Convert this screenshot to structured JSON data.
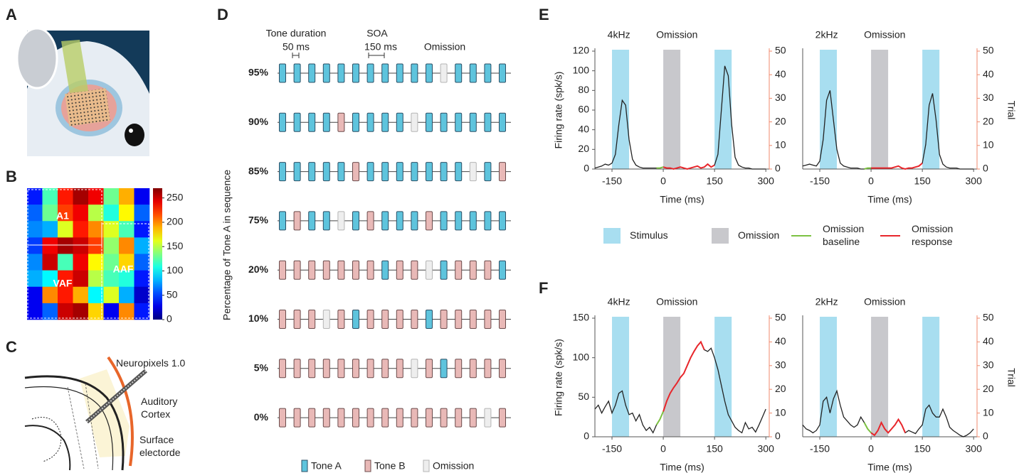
{
  "panel_labels": [
    "A",
    "B",
    "C",
    "D",
    "E",
    "F"
  ],
  "anatomy_labels": [
    [
      "Neuropixels 1.0"
    ],
    [
      "Auditory",
      "Cortex"
    ],
    [
      "Surface",
      "electorde"
    ]
  ],
  "sequence_diagram": {
    "y_label": "Percentage of  Tone A in sequence",
    "tone_duration_label": "Tone duration",
    "tone_duration_value": "50 ms",
    "soa_label": "SOA",
    "soa_value": "150 ms",
    "omission_label": "Omission",
    "legend": [
      {
        "name": "Tone A",
        "color": "#5ec4dd",
        "stroke": "#2b4f66"
      },
      {
        "name": "Tone B",
        "color": "#e9b9b7",
        "stroke": "#6b4b4b"
      },
      {
        "name": "Omission",
        "color": "#eeeeee",
        "stroke": "#b5b5b5"
      }
    ],
    "rows": [
      {
        "label": "95%",
        "sequence": [
          "Tone A",
          "Tone A",
          "Tone A",
          "Tone A",
          "Tone A",
          "Tone A",
          "Tone A",
          "Tone A",
          "Tone A",
          "Tone A",
          "Tone A",
          "Omission",
          "Tone A",
          "Tone A",
          "Tone A",
          "Tone A"
        ]
      },
      {
        "label": "90%",
        "sequence": [
          "Tone A",
          "Tone A",
          "Tone A",
          "Tone A",
          "Tone B",
          "Tone A",
          "Tone A",
          "Tone A",
          "Tone A",
          "Omission",
          "Tone A",
          "Tone A",
          "Tone A",
          "Tone A",
          "Tone A",
          "Tone A"
        ]
      },
      {
        "label": "85%",
        "sequence": [
          "Tone A",
          "Tone A",
          "Tone A",
          "Tone A",
          "Tone A",
          "Tone B",
          "Tone A",
          "Tone A",
          "Tone A",
          "Tone A",
          "Tone A",
          "Tone A",
          "Tone A",
          "Omission",
          "Tone A",
          "Tone B"
        ]
      },
      {
        "label": "75%",
        "sequence": [
          "Tone A",
          "Tone B",
          "Tone A",
          "Tone A",
          "Omission",
          "Tone A",
          "Tone B",
          "Tone A",
          "Tone A",
          "Tone A",
          "Tone B",
          "Tone A",
          "Tone A",
          "Tone A",
          "Tone A",
          "Tone A"
        ]
      },
      {
        "label": "20%",
        "sequence": [
          "Tone B",
          "Tone B",
          "Tone B",
          "Tone B",
          "Tone B",
          "Tone B",
          "Tone B",
          "Tone A",
          "Tone B",
          "Tone B",
          "Omission",
          "Tone A",
          "Tone B",
          "Tone B",
          "Tone B",
          "Tone A"
        ]
      },
      {
        "label": "10%",
        "sequence": [
          "Tone B",
          "Tone B",
          "Tone B",
          "Omission",
          "Tone B",
          "Tone A",
          "Tone B",
          "Tone B",
          "Tone B",
          "Tone B",
          "Tone A",
          "Tone B",
          "Tone B",
          "Tone B",
          "Tone B",
          "Tone B"
        ]
      },
      {
        "label": "5%",
        "sequence": [
          "Tone B",
          "Tone B",
          "Tone B",
          "Tone B",
          "Tone B",
          "Tone B",
          "Tone B",
          "Tone B",
          "Tone B",
          "Omission",
          "Tone B",
          "Tone A",
          "Tone B",
          "Tone B",
          "Tone B",
          "Tone B"
        ]
      },
      {
        "label": "0%",
        "sequence": [
          "Tone B",
          "Tone B",
          "Tone B",
          "Tone B",
          "Tone B",
          "Tone B",
          "Tone B",
          "Tone B",
          "Tone B",
          "Tone B",
          "Tone B",
          "Tone B",
          "Tone B",
          "Tone B",
          "Omission",
          "Tone B"
        ]
      }
    ]
  },
  "legend_ef": [
    {
      "label": [
        "Stimulus"
      ],
      "color": "#a8def0",
      "kind": "box"
    },
    {
      "label": [
        "Omission"
      ],
      "color": "#c8c8cc",
      "kind": "box"
    },
    {
      "label": [
        "Omission",
        "baseline"
      ],
      "color": "#7cc142",
      "kind": "line"
    },
    {
      "label": [
        "Omission",
        "response"
      ],
      "color": "#e8262b",
      "kind": "line"
    }
  ],
  "chart_data": [
    {
      "type": "heatmap",
      "colormap": "jet",
      "zlim": [
        0,
        270
      ],
      "zticks": [
        0,
        50,
        100,
        150,
        200,
        250
      ],
      "region_labels": [
        "A1",
        "VAF",
        "AAF"
      ],
      "z": [
        [
          40,
          120,
          230,
          260,
          240,
          130,
          190,
          30
        ],
        [
          60,
          130,
          220,
          240,
          150,
          110,
          170,
          60
        ],
        [
          70,
          80,
          160,
          230,
          200,
          160,
          120,
          40
        ],
        [
          50,
          240,
          260,
          250,
          220,
          140,
          200,
          80
        ],
        [
          70,
          250,
          120,
          240,
          170,
          130,
          180,
          60
        ],
        [
          80,
          100,
          230,
          250,
          150,
          120,
          110,
          40
        ],
        [
          30,
          200,
          230,
          190,
          100,
          160,
          80,
          20
        ],
        [
          30,
          60,
          250,
          260,
          180,
          30,
          200,
          40
        ]
      ]
    },
    {
      "type": "line",
      "annotations": [
        "4kHz",
        "Omission"
      ],
      "xlabel": "Time (ms)",
      "ylabel": "Firing rate (spk/s)",
      "xlim": [
        -200,
        310
      ],
      "xticks": [
        -150,
        0,
        150,
        300
      ],
      "ylim": [
        0,
        120
      ],
      "yticks": [
        0,
        20,
        40,
        60,
        80,
        100,
        120
      ],
      "y2lim": [
        0,
        50
      ],
      "y2ticks": [
        0,
        10,
        20,
        30,
        40,
        50
      ],
      "bands": [
        {
          "color": "#a8def0",
          "xrange": [
            -150,
            -100
          ]
        },
        {
          "color": "#c8c8cc",
          "xrange": [
            0,
            50
          ]
        },
        {
          "color": "#a8def0",
          "xrange": [
            150,
            200
          ]
        }
      ],
      "highlights": [
        {
          "color": "#7cc142",
          "xrange": [
            -20,
            0
          ]
        },
        {
          "color": "#e8262b",
          "xrange": [
            0,
            150
          ]
        }
      ],
      "x": [
        -200,
        -190,
        -180,
        -170,
        -160,
        -150,
        -140,
        -130,
        -120,
        -110,
        -100,
        -90,
        -80,
        -70,
        -60,
        -50,
        -40,
        -30,
        -20,
        -10,
        0,
        10,
        20,
        30,
        40,
        50,
        60,
        70,
        80,
        90,
        100,
        110,
        120,
        130,
        140,
        150,
        160,
        170,
        180,
        190,
        200,
        210,
        220,
        230,
        240,
        250,
        260,
        270,
        280,
        290,
        300
      ],
      "series": [
        {
          "color": "#222222",
          "values": [
            1,
            2,
            3,
            5,
            4,
            6,
            15,
            45,
            70,
            65,
            30,
            10,
            4,
            2,
            1,
            1,
            1,
            1,
            1,
            1,
            2,
            1,
            1,
            0,
            1,
            2,
            1,
            0,
            1,
            2,
            3,
            1,
            2,
            5,
            2,
            4,
            15,
            60,
            105,
            95,
            45,
            12,
            4,
            2,
            1,
            1,
            0,
            0,
            0,
            0,
            0
          ]
        }
      ]
    },
    {
      "type": "line",
      "annotations": [
        "2kHz",
        "Omission"
      ],
      "xlabel": "Time (ms)",
      "y2label": "Trial",
      "xlim": [
        -200,
        310
      ],
      "xticks": [
        -150,
        0,
        150,
        300
      ],
      "ylim": [
        0,
        120
      ],
      "y2lim": [
        0,
        50
      ],
      "y2ticks": [
        0,
        10,
        20,
        30,
        40,
        50
      ],
      "bands": [
        {
          "color": "#a8def0",
          "xrange": [
            -150,
            -100
          ]
        },
        {
          "color": "#c8c8cc",
          "xrange": [
            0,
            50
          ]
        },
        {
          "color": "#a8def0",
          "xrange": [
            150,
            200
          ]
        }
      ],
      "highlights": [
        {
          "color": "#7cc142",
          "xrange": [
            -20,
            0
          ]
        },
        {
          "color": "#e8262b",
          "xrange": [
            0,
            150
          ]
        }
      ],
      "x": [
        -200,
        -190,
        -180,
        -170,
        -160,
        -150,
        -140,
        -130,
        -120,
        -110,
        -100,
        -90,
        -80,
        -70,
        -60,
        -50,
        -40,
        -30,
        -20,
        -10,
        0,
        10,
        20,
        30,
        40,
        50,
        60,
        70,
        80,
        90,
        100,
        110,
        120,
        130,
        140,
        150,
        160,
        170,
        180,
        190,
        200,
        210,
        220,
        230,
        240,
        250,
        260,
        270,
        280,
        290,
        300
      ],
      "series": [
        {
          "color": "#222222",
          "values": [
            3,
            4,
            5,
            4,
            3,
            8,
            30,
            70,
            80,
            50,
            20,
            6,
            3,
            2,
            1,
            1,
            1,
            0,
            0,
            1,
            1,
            1,
            1,
            1,
            1,
            1,
            1,
            2,
            3,
            1,
            0,
            1,
            1,
            2,
            3,
            6,
            25,
            65,
            77,
            50,
            15,
            5,
            2,
            1,
            1,
            1,
            0,
            0,
            0,
            0,
            0
          ]
        }
      ]
    },
    {
      "type": "line",
      "annotations": [
        "4kHz",
        "Omission"
      ],
      "xlabel": "Time (ms)",
      "ylabel": "Firing rate (spk/s)",
      "xlim": [
        -200,
        310
      ],
      "xticks": [
        -150,
        0,
        150,
        300
      ],
      "ylim": [
        0,
        150
      ],
      "yticks": [
        0,
        50,
        100,
        150
      ],
      "y2lim": [
        0,
        50
      ],
      "y2ticks": [
        0,
        10,
        20,
        30,
        40,
        50
      ],
      "bands": [
        {
          "color": "#a8def0",
          "xrange": [
            -150,
            -100
          ]
        },
        {
          "color": "#c8c8cc",
          "xrange": [
            0,
            50
          ]
        },
        {
          "color": "#a8def0",
          "xrange": [
            150,
            200
          ]
        }
      ],
      "highlights": [
        {
          "color": "#7cc142",
          "xrange": [
            -20,
            0
          ]
        },
        {
          "color": "#e8262b",
          "xrange": [
            0,
            120
          ]
        }
      ],
      "x": [
        -200,
        -190,
        -180,
        -170,
        -160,
        -150,
        -140,
        -130,
        -120,
        -110,
        -100,
        -90,
        -80,
        -70,
        -60,
        -50,
        -40,
        -30,
        -20,
        -10,
        0,
        10,
        20,
        30,
        40,
        50,
        60,
        70,
        80,
        90,
        100,
        110,
        120,
        130,
        140,
        150,
        160,
        170,
        180,
        190,
        200,
        210,
        220,
        230,
        240,
        250,
        260,
        270,
        280,
        290,
        300
      ],
      "series": [
        {
          "color": "#222222",
          "values": [
            35,
            40,
            30,
            38,
            45,
            30,
            40,
            55,
            58,
            40,
            28,
            30,
            20,
            28,
            15,
            8,
            12,
            5,
            15,
            22,
            32,
            45,
            55,
            62,
            68,
            75,
            80,
            90,
            100,
            108,
            115,
            120,
            110,
            108,
            112,
            100,
            85,
            65,
            45,
            28,
            20,
            12,
            8,
            5,
            18,
            10,
            12,
            6,
            15,
            25,
            35
          ]
        }
      ]
    },
    {
      "type": "line",
      "annotations": [
        "2kHz",
        "Omission"
      ],
      "xlabel": "Time (ms)",
      "y2label": "Trial",
      "xlim": [
        -200,
        310
      ],
      "xticks": [
        -150,
        0,
        150,
        300
      ],
      "ylim": [
        0,
        150
      ],
      "y2lim": [
        0,
        50
      ],
      "y2ticks": [
        0,
        10,
        20,
        30,
        40,
        50
      ],
      "bands": [
        {
          "color": "#a8def0",
          "xrange": [
            -150,
            -100
          ]
        },
        {
          "color": "#c8c8cc",
          "xrange": [
            0,
            50
          ]
        },
        {
          "color": "#a8def0",
          "xrange": [
            150,
            200
          ]
        }
      ],
      "highlights": [
        {
          "color": "#7cc142",
          "xrange": [
            -20,
            0
          ]
        },
        {
          "color": "#e8262b",
          "xrange": [
            0,
            100
          ]
        }
      ],
      "x": [
        -200,
        -190,
        -180,
        -170,
        -160,
        -150,
        -140,
        -130,
        -120,
        -110,
        -100,
        -90,
        -80,
        -70,
        -60,
        -50,
        -40,
        -30,
        -20,
        -10,
        0,
        10,
        20,
        30,
        40,
        50,
        60,
        70,
        80,
        90,
        100,
        110,
        120,
        130,
        140,
        150,
        160,
        170,
        180,
        190,
        200,
        210,
        220,
        230,
        240,
        250,
        260,
        270,
        280,
        290,
        300
      ],
      "series": [
        {
          "color": "#222222",
          "values": [
            15,
            10,
            8,
            5,
            8,
            15,
            45,
            50,
            30,
            48,
            58,
            40,
            25,
            20,
            15,
            12,
            15,
            25,
            18,
            10,
            5,
            2,
            8,
            18,
            10,
            5,
            10,
            15,
            22,
            15,
            5,
            8,
            6,
            4,
            10,
            15,
            35,
            40,
            30,
            25,
            25,
            35,
            25,
            12,
            8,
            5,
            2,
            0,
            2,
            5,
            10
          ]
        }
      ]
    }
  ]
}
